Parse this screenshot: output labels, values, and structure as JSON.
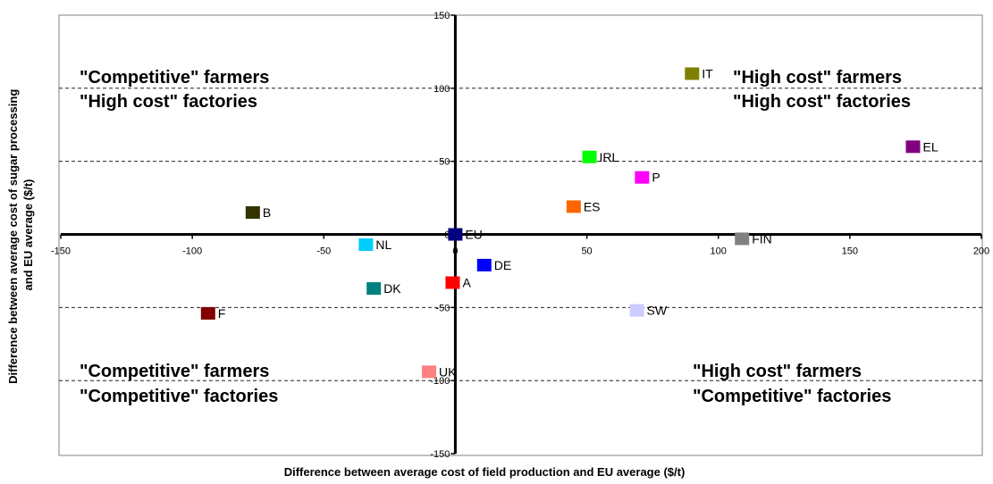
{
  "chart_data": {
    "type": "scatter",
    "xlabel": "Difference between average cost of field production and EU average ($/t)",
    "ylabel": "Difference between average cost of sugar processing and EU average ($/t)",
    "xlim": [
      -150,
      200
    ],
    "ylim": [
      -150,
      150
    ],
    "x_ticks": [
      -150,
      -100,
      -50,
      0,
      50,
      100,
      150,
      200
    ],
    "y_ticks": [
      -150,
      -100,
      -50,
      0,
      50,
      100,
      150
    ],
    "threshold_lines_y": [
      100,
      50,
      -50,
      -100
    ],
    "grid": false,
    "points": [
      {
        "label": "IT",
        "x": 90,
        "y": 110,
        "color": "#808000"
      },
      {
        "label": "EL",
        "x": 174,
        "y": 60,
        "color": "#800080"
      },
      {
        "label": "IRL",
        "x": 51,
        "y": 53,
        "color": "#00ff00"
      },
      {
        "label": "P",
        "x": 71,
        "y": 39,
        "color": "#ff00ff"
      },
      {
        "label": "ES",
        "x": 45,
        "y": 19,
        "color": "#ff6600"
      },
      {
        "label": "B",
        "x": -77,
        "y": 15,
        "color": "#333300"
      },
      {
        "label": "EU",
        "x": 0,
        "y": 0,
        "color": "#000080"
      },
      {
        "label": "FIN",
        "x": 109,
        "y": -3,
        "color": "#808080"
      },
      {
        "label": "NL",
        "x": -34,
        "y": -7,
        "color": "#00ccff"
      },
      {
        "label": "DE",
        "x": 11,
        "y": -21,
        "color": "#0000ff"
      },
      {
        "label": "A",
        "x": -1,
        "y": -33,
        "color": "#ff0000"
      },
      {
        "label": "DK",
        "x": -31,
        "y": -37,
        "color": "#008080"
      },
      {
        "label": "SW",
        "x": 69,
        "y": -52,
        "color": "#ccccff"
      },
      {
        "label": "F",
        "x": -94,
        "y": -54,
        "color": "#800000"
      },
      {
        "label": "UK",
        "x": -10,
        "y": -94,
        "color": "#ff8080"
      }
    ],
    "quadrant_labels": {
      "top_left": [
        "\"Competitive\" farmers",
        "\"High cost\" factories"
      ],
      "top_right": [
        "\"High cost\" farmers",
        "\"High cost\" factories"
      ],
      "bottom_left": [
        "\"Competitive\" farmers",
        "\"Competitive\" factories"
      ],
      "bottom_right": [
        "\"High cost\" farmers",
        "\"Competitive\" factories"
      ]
    }
  }
}
